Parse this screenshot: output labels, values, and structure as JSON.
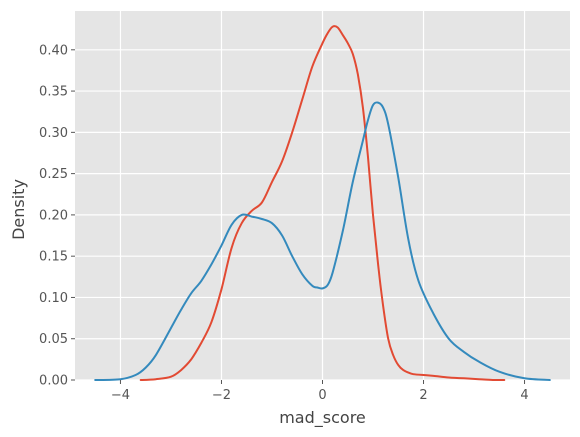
{
  "chart_data": {
    "type": "line",
    "title": "",
    "xlabel": "mad_score",
    "ylabel": "Density",
    "xlim": [
      -4.9,
      4.9
    ],
    "ylim": [
      0,
      0.447
    ],
    "grid": true,
    "background": "#e5e5e5",
    "grid_color": "#ffffff",
    "x_ticks": [
      -4,
      -2,
      0,
      2,
      4
    ],
    "x_tick_labels": [
      "−4",
      "−2",
      "0",
      "2",
      "4"
    ],
    "y_ticks": [
      0.0,
      0.05,
      0.1,
      0.15,
      0.2,
      0.25,
      0.3,
      0.35,
      0.4
    ],
    "y_tick_labels": [
      "0.00",
      "0.05",
      "0.10",
      "0.15",
      "0.20",
      "0.25",
      "0.30",
      "0.35",
      "0.40"
    ],
    "series": [
      {
        "color": "#e24a33",
        "x": [
          -3.6,
          -3.3,
          -3.0,
          -2.8,
          -2.6,
          -2.4,
          -2.2,
          -2.0,
          -1.8,
          -1.6,
          -1.4,
          -1.2,
          -1.0,
          -0.8,
          -0.6,
          -0.4,
          -0.2,
          0.0,
          0.1,
          0.2,
          0.3,
          0.4,
          0.5,
          0.6,
          0.7,
          0.8,
          0.9,
          1.0,
          1.1,
          1.2,
          1.3,
          1.4,
          1.5,
          1.6,
          1.7,
          1.8,
          2.0,
          2.2,
          2.5,
          2.8,
          3.1,
          3.4,
          3.6
        ],
        "y": [
          0.0,
          0.001,
          0.004,
          0.012,
          0.025,
          0.045,
          0.07,
          0.11,
          0.16,
          0.19,
          0.205,
          0.215,
          0.24,
          0.265,
          0.3,
          0.34,
          0.38,
          0.408,
          0.42,
          0.428,
          0.427,
          0.418,
          0.408,
          0.395,
          0.37,
          0.33,
          0.27,
          0.2,
          0.14,
          0.09,
          0.05,
          0.03,
          0.018,
          0.012,
          0.009,
          0.007,
          0.006,
          0.005,
          0.003,
          0.002,
          0.001,
          0.0,
          0.0
        ]
      },
      {
        "color": "#348abd",
        "x": [
          -4.5,
          -4.0,
          -3.7,
          -3.5,
          -3.3,
          -3.0,
          -2.8,
          -2.6,
          -2.4,
          -2.2,
          -2.0,
          -1.8,
          -1.6,
          -1.4,
          -1.2,
          -1.0,
          -0.8,
          -0.6,
          -0.4,
          -0.2,
          -0.1,
          0.0,
          0.1,
          0.2,
          0.4,
          0.6,
          0.8,
          0.9,
          1.0,
          1.1,
          1.2,
          1.3,
          1.5,
          1.7,
          1.9,
          2.2,
          2.5,
          2.8,
          3.1,
          3.5,
          4.0,
          4.5
        ],
        "y": [
          0.0,
          0.001,
          0.006,
          0.015,
          0.03,
          0.063,
          0.085,
          0.105,
          0.12,
          0.14,
          0.163,
          0.188,
          0.2,
          0.198,
          0.195,
          0.19,
          0.175,
          0.15,
          0.128,
          0.114,
          0.112,
          0.111,
          0.115,
          0.13,
          0.18,
          0.24,
          0.29,
          0.315,
          0.333,
          0.336,
          0.33,
          0.31,
          0.245,
          0.17,
          0.12,
          0.08,
          0.05,
          0.034,
          0.022,
          0.01,
          0.002,
          0.0
        ]
      }
    ]
  }
}
